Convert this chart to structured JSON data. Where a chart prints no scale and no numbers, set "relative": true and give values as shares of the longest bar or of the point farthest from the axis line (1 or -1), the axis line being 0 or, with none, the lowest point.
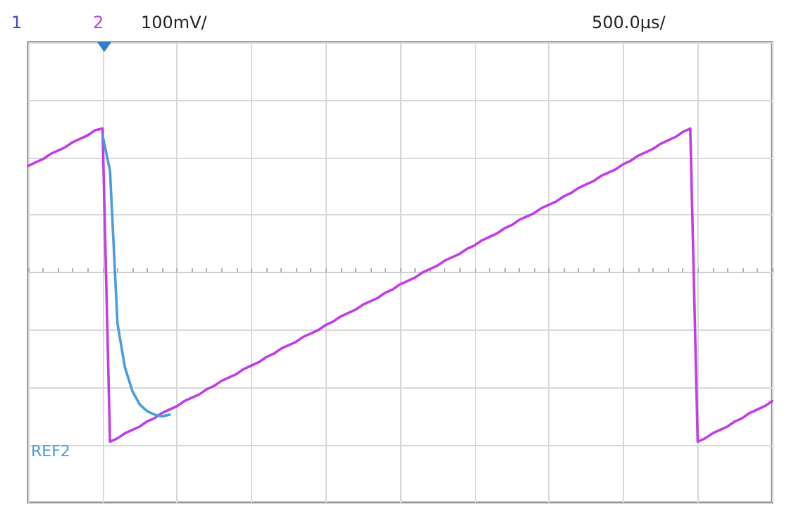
{
  "chart_data": {
    "type": "line",
    "relative": true,
    "grid": true,
    "legend": false,
    "marker": "none",
    "line_style": "solid",
    "annotations": [
      "1",
      "100mV/",
      "500.0µs/"
    ],
    "categories": [
      null,
      null,
      null,
      null,
      null,
      null,
      null,
      null,
      null,
      null,
      null,
      null,
      null,
      null,
      null,
      null,
      null,
      null,
      null,
      null,
      null,
      null,
      null,
      null,
      null,
      null,
      null,
      null,
      null,
      null,
      null,
      null,
      null,
      null,
      null,
      null,
      null,
      null,
      null,
      null,
      null,
      null,
      null,
      null,
      null,
      null,
      null,
      null,
      null,
      null,
      null,
      null,
      null,
      null,
      null,
      null,
      null,
      null,
      null,
      null,
      null,
      null,
      null,
      null,
      null,
      null,
      null,
      null,
      null,
      null,
      null,
      null,
      null,
      null,
      null,
      null,
      null,
      null,
      null,
      null,
      null,
      null,
      null,
      null,
      null,
      null,
      null,
      null,
      null,
      null,
      null,
      null,
      null,
      null,
      null,
      null,
      null,
      null,
      null,
      null,
      null
    ],
    "series": [
      {
        "name": "2",
        "color": "#c03ee6",
        "values": [
          0.63,
          0.65,
          0.67,
          0.7,
          0.72,
          0.74,
          0.77,
          0.79,
          0.81,
          0.84,
          0.85,
          -1,
          -0.98,
          -0.95,
          -0.93,
          -0.91,
          -0.88,
          -0.86,
          -0.83,
          -0.81,
          -0.79,
          -0.76,
          -0.74,
          -0.72,
          -0.69,
          -0.67,
          -0.64,
          -0.62,
          -0.6,
          -0.57,
          -0.55,
          -0.53,
          -0.5,
          -0.48,
          -0.45,
          -0.43,
          -0.41,
          -0.38,
          -0.36,
          -0.34,
          -0.31,
          -0.29,
          -0.26,
          -0.24,
          -0.22,
          -0.19,
          -0.17,
          -0.15,
          -0.12,
          -0.1,
          -0.07,
          -0.05,
          -0.03,
          0,
          0.02,
          0.04,
          0.07,
          0.09,
          0.11,
          0.14,
          0.16,
          0.19,
          0.21,
          0.23,
          0.26,
          0.28,
          0.31,
          0.33,
          0.35,
          0.38,
          0.4,
          0.42,
          0.45,
          0.47,
          0.5,
          0.52,
          0.54,
          0.57,
          0.59,
          0.61,
          0.64,
          0.66,
          0.69,
          0.71,
          0.73,
          0.76,
          0.78,
          0.8,
          0.83,
          0.85,
          -1,
          -0.98,
          -0.95,
          -0.93,
          -0.91,
          -0.88,
          -0.86,
          -0.83,
          -0.81,
          -0.79,
          -0.76
        ]
      },
      {
        "name": "REF2",
        "color": "#4a9be0",
        "values": [
          null,
          null,
          null,
          null,
          null,
          null,
          null,
          null,
          null,
          null,
          0.81,
          0.6,
          -0.3,
          -0.56,
          -0.7,
          -0.78,
          -0.82,
          -0.84,
          -0.85,
          -0.84,
          null,
          null,
          null,
          null,
          null,
          null,
          null,
          null,
          null,
          null,
          null,
          null,
          null,
          null,
          null,
          null,
          null,
          null,
          null,
          null,
          null,
          null,
          null,
          null,
          null,
          null,
          null,
          null,
          null,
          null,
          null,
          null,
          null,
          null,
          null,
          null,
          null,
          null,
          null,
          null,
          null,
          null,
          null,
          null,
          null,
          null,
          null,
          null,
          null,
          null,
          null,
          null,
          null,
          null,
          null,
          null,
          null,
          null,
          null,
          null,
          null,
          null,
          null,
          null,
          null,
          null,
          null,
          null,
          null,
          null,
          null,
          null,
          null,
          null,
          null,
          null,
          null,
          null,
          null,
          null,
          null
        ]
      }
    ]
  }
}
